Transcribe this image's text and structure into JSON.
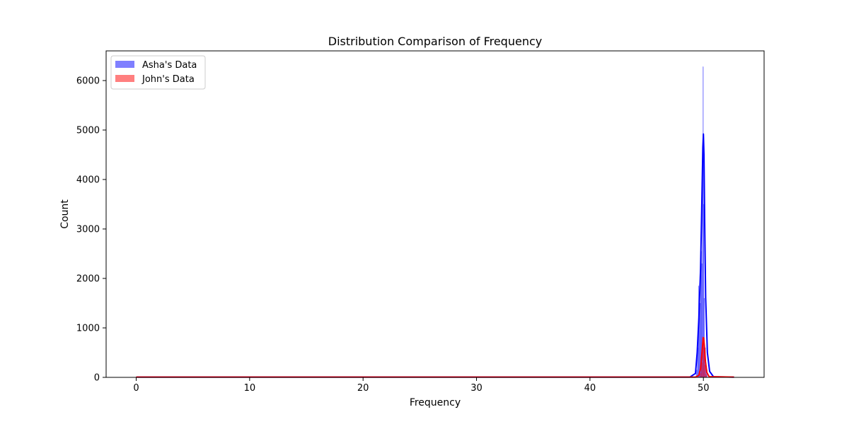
{
  "chart_data": {
    "type": "histogram",
    "title": "Distribution Comparison of Frequency",
    "xlabel": "Frequency",
    "ylabel": "Count",
    "xlim": [
      -2.65,
      55.35
    ],
    "ylim": [
      0,
      6600
    ],
    "xticks": [
      0,
      10,
      20,
      30,
      40,
      50
    ],
    "yticks": [
      0,
      1000,
      2000,
      3000,
      4000,
      5000,
      6000
    ],
    "grid": false,
    "legend_position": "top-left",
    "series": [
      {
        "name": "Asha's Data",
        "color": "#0000ff",
        "bar_opacity": 0.5,
        "bins": [
          {
            "x0": 49.35,
            "x1": 49.45,
            "y": 150
          },
          {
            "x0": 49.45,
            "x1": 49.55,
            "y": 600
          },
          {
            "x0": 49.55,
            "x1": 49.6,
            "y": 1850
          },
          {
            "x0": 49.6,
            "x1": 49.65,
            "y": 1200
          },
          {
            "x0": 49.65,
            "x1": 49.7,
            "y": 1900
          },
          {
            "x0": 49.7,
            "x1": 49.75,
            "y": 1500
          },
          {
            "x0": 49.75,
            "x1": 49.8,
            "y": 2400
          },
          {
            "x0": 49.8,
            "x1": 49.85,
            "y": 2550
          },
          {
            "x0": 49.85,
            "x1": 49.9,
            "y": 2300
          },
          {
            "x0": 49.9,
            "x1": 49.95,
            "y": 4000
          },
          {
            "x0": 49.95,
            "x1": 50.0,
            "y": 6280
          },
          {
            "x0": 50.0,
            "x1": 50.05,
            "y": 3500
          },
          {
            "x0": 50.05,
            "x1": 50.1,
            "y": 1600
          },
          {
            "x0": 50.1,
            "x1": 50.2,
            "y": 600
          },
          {
            "x0": 50.2,
            "x1": 50.35,
            "y": 150
          }
        ],
        "kde": [
          [
            0,
            5
          ],
          [
            10,
            5
          ],
          [
            20,
            5
          ],
          [
            30,
            5
          ],
          [
            40,
            5
          ],
          [
            48.8,
            5
          ],
          [
            49.3,
            80
          ],
          [
            49.45,
            500
          ],
          [
            49.6,
            1200
          ],
          [
            49.75,
            2200
          ],
          [
            49.85,
            3400
          ],
          [
            49.95,
            4650
          ],
          [
            50.0,
            4920
          ],
          [
            50.05,
            4500
          ],
          [
            50.12,
            3000
          ],
          [
            50.2,
            1600
          ],
          [
            50.35,
            500
          ],
          [
            50.55,
            120
          ],
          [
            50.9,
            10
          ],
          [
            52.7,
            5
          ]
        ]
      },
      {
        "name": "John's Data",
        "color": "#ff0000",
        "bar_opacity": 0.5,
        "bins": [
          {
            "x0": 49.7,
            "x1": 49.8,
            "y": 80
          },
          {
            "x0": 49.8,
            "x1": 49.9,
            "y": 300
          },
          {
            "x0": 49.9,
            "x1": 50.0,
            "y": 820
          },
          {
            "x0": 50.0,
            "x1": 50.1,
            "y": 600
          },
          {
            "x0": 50.1,
            "x1": 50.2,
            "y": 250
          },
          {
            "x0": 50.2,
            "x1": 50.3,
            "y": 60
          }
        ],
        "kde": [
          [
            0,
            5
          ],
          [
            10,
            5
          ],
          [
            20,
            5
          ],
          [
            30,
            5
          ],
          [
            40,
            5
          ],
          [
            49.3,
            5
          ],
          [
            49.6,
            40
          ],
          [
            49.75,
            180
          ],
          [
            49.88,
            520
          ],
          [
            49.97,
            770
          ],
          [
            50.02,
            800
          ],
          [
            50.08,
            650
          ],
          [
            50.18,
            320
          ],
          [
            50.3,
            100
          ],
          [
            50.5,
            15
          ],
          [
            52.7,
            5
          ]
        ]
      }
    ]
  }
}
